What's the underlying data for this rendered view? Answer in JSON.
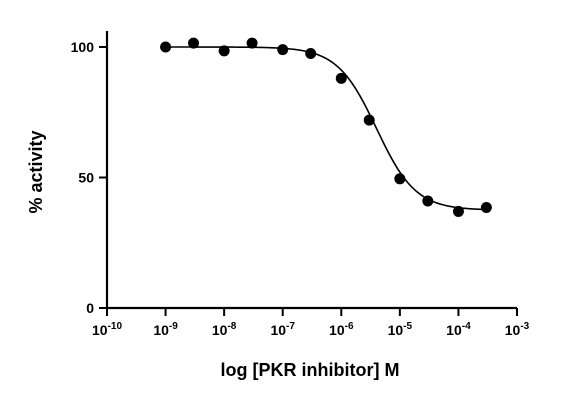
{
  "chart_data": {
    "type": "scatter",
    "title": "",
    "xlabel": "log [PKR inhibitor] M",
    "ylabel": "% activity",
    "xscale": "log",
    "xlim": [
      1e-10,
      0.001
    ],
    "ylim": [
      0,
      100
    ],
    "grid": false,
    "legend": "none",
    "x_ticks": [
      {
        "base": "10",
        "exp": "-10",
        "value": 1e-10
      },
      {
        "base": "10",
        "exp": "-9",
        "value": 1e-09
      },
      {
        "base": "10",
        "exp": "-8",
        "value": 1e-08
      },
      {
        "base": "10",
        "exp": "-7",
        "value": 1e-07
      },
      {
        "base": "10",
        "exp": "-6",
        "value": 1e-06
      },
      {
        "base": "10",
        "exp": "-5",
        "value": 1e-05
      },
      {
        "base": "10",
        "exp": "-4",
        "value": 0.0001
      },
      {
        "base": "10",
        "exp": "-3",
        "value": 0.001
      }
    ],
    "y_ticks": [
      {
        "label": "0",
        "value": 0
      },
      {
        "label": "50",
        "value": 50
      },
      {
        "label": "100",
        "value": 100
      }
    ],
    "series": [
      {
        "style": "points",
        "color": "#000000",
        "x": [
          1e-09,
          3e-09,
          1e-08,
          3e-08,
          1e-07,
          3e-07,
          1e-06,
          3e-06,
          1e-05,
          3e-05,
          0.0001,
          0.0003
        ],
        "y": [
          100,
          101.5,
          98.5,
          101.5,
          99,
          97.5,
          88,
          72,
          49.5,
          41,
          37,
          38.5
        ]
      },
      {
        "style": "fit-curve",
        "color": "#000000",
        "model": "four-parameter logistic",
        "top": 100,
        "bottom": 37.5,
        "ic50": 4e-06,
        "hill": 1.3
      }
    ]
  }
}
